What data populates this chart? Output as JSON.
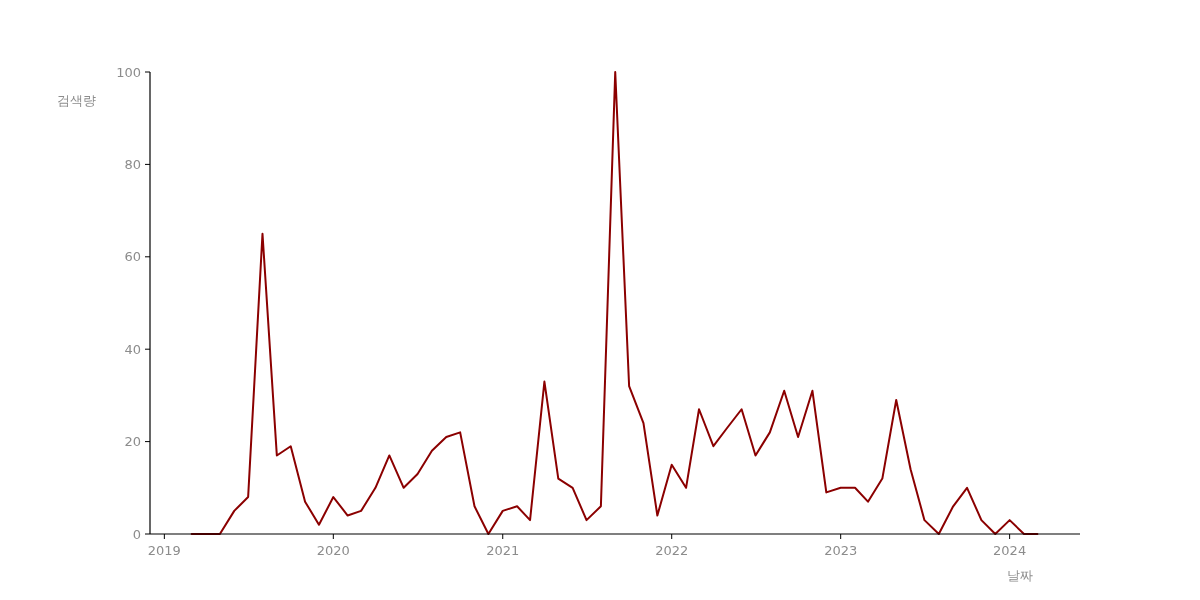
{
  "chart_data": {
    "type": "line",
    "xlabel": "날짜",
    "ylabel": "검색량",
    "x": [
      "2019-03-01",
      "2019-04-01",
      "2019-05-01",
      "2019-06-01",
      "2019-07-01",
      "2019-08-01",
      "2019-09-01",
      "2019-10-01",
      "2019-11-01",
      "2019-12-01",
      "2020-01-01",
      "2020-02-01",
      "2020-03-01",
      "2020-04-01",
      "2020-05-01",
      "2020-06-01",
      "2020-07-01",
      "2020-08-01",
      "2020-09-01",
      "2020-10-01",
      "2020-11-01",
      "2020-12-01",
      "2021-01-01",
      "2021-02-01",
      "2021-03-01",
      "2021-04-01",
      "2021-05-01",
      "2021-06-01",
      "2021-07-01",
      "2021-08-01",
      "2021-09-01",
      "2021-10-01",
      "2021-11-01",
      "2021-12-01",
      "2022-01-01",
      "2022-02-01",
      "2022-03-01",
      "2022-04-01",
      "2022-05-01",
      "2022-06-01",
      "2022-07-01",
      "2022-08-01",
      "2022-09-01",
      "2022-10-01",
      "2022-11-01",
      "2022-12-01",
      "2023-01-01",
      "2023-02-01",
      "2023-03-01",
      "2023-04-01",
      "2023-05-01",
      "2023-06-01",
      "2023-07-01",
      "2023-08-01",
      "2023-09-01",
      "2023-10-01",
      "2023-11-01",
      "2023-12-01",
      "2024-01-01",
      "2024-02-01",
      "2024-03-01"
    ],
    "series": [
      {
        "color": "#8b0000",
        "values": [
          0,
          0,
          0,
          5,
          8,
          65,
          17,
          19,
          7,
          2,
          8,
          4,
          5,
          10,
          17,
          10,
          13,
          18,
          21,
          22,
          6,
          0,
          5,
          6,
          3,
          33,
          12,
          10,
          3,
          6,
          100,
          32,
          24,
          4,
          15,
          10,
          27,
          19,
          23,
          27,
          17,
          22,
          31,
          21,
          31,
          9,
          10,
          10,
          7,
          12,
          29,
          14,
          3,
          0,
          6,
          10,
          3,
          0,
          3,
          0,
          0
        ]
      }
    ],
    "xlim": [
      "2018-12-01",
      "2024-06-01"
    ],
    "xticks": [
      {
        "value": "2019-01-01",
        "label": "2019"
      },
      {
        "value": "2020-01-01",
        "label": "2020"
      },
      {
        "value": "2021-01-01",
        "label": "2021"
      },
      {
        "value": "2022-01-01",
        "label": "2022"
      },
      {
        "value": "2023-01-01",
        "label": "2023"
      },
      {
        "value": "2024-01-01",
        "label": "2024"
      }
    ],
    "ylim": [
      0,
      100
    ],
    "yticks": [
      0,
      20,
      40,
      60,
      80,
      100
    ],
    "grid": false,
    "marker": "none",
    "line_style": "solid"
  }
}
